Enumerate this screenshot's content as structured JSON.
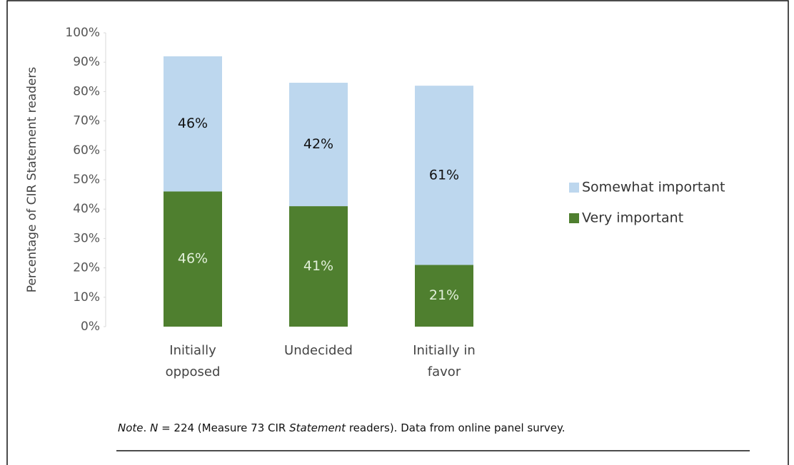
{
  "chart_data": {
    "type": "stacked_bar",
    "y_axis_label": "Percentage of CIR Statement readers",
    "categories": [
      [
        "Initially",
        "opposed"
      ],
      [
        "Undecided"
      ],
      [
        "Initially in",
        "favor"
      ]
    ],
    "series": [
      {
        "name": "Very important",
        "color": "#4f7f2f",
        "label_color": "#e2efda",
        "values": [
          46,
          41,
          21
        ],
        "value_labels": [
          "46%",
          "41%",
          "21%"
        ]
      },
      {
        "name": "Somewhat important",
        "color": "#bdd7ee",
        "label_color": "#111111",
        "values": [
          46,
          42,
          61
        ],
        "value_labels": [
          "46%",
          "42%",
          "61%"
        ]
      }
    ],
    "ylim": [
      0,
      100
    ],
    "yticks": [
      {
        "value": 0,
        "label": "0%"
      },
      {
        "value": 10,
        "label": "10%"
      },
      {
        "value": 20,
        "label": "20%"
      },
      {
        "value": 30,
        "label": "30%"
      },
      {
        "value": 40,
        "label": "40%"
      },
      {
        "value": 50,
        "label": "50%"
      },
      {
        "value": 60,
        "label": "60%"
      },
      {
        "value": 70,
        "label": "70%"
      },
      {
        "value": 80,
        "label": "80%"
      },
      {
        "value": 90,
        "label": "90%"
      },
      {
        "value": 100,
        "label": "100%"
      }
    ],
    "legend_order": [
      1,
      0
    ],
    "note": [
      {
        "text": "Note",
        "italic": true
      },
      {
        "text": ". ",
        "italic": false
      },
      {
        "text": "N",
        "italic": true
      },
      {
        "text": " = 224 (Measure 73 CIR ",
        "italic": false
      },
      {
        "text": "Statement",
        "italic": true
      },
      {
        "text": " readers). Data from online panel survey.",
        "italic": false
      }
    ]
  }
}
